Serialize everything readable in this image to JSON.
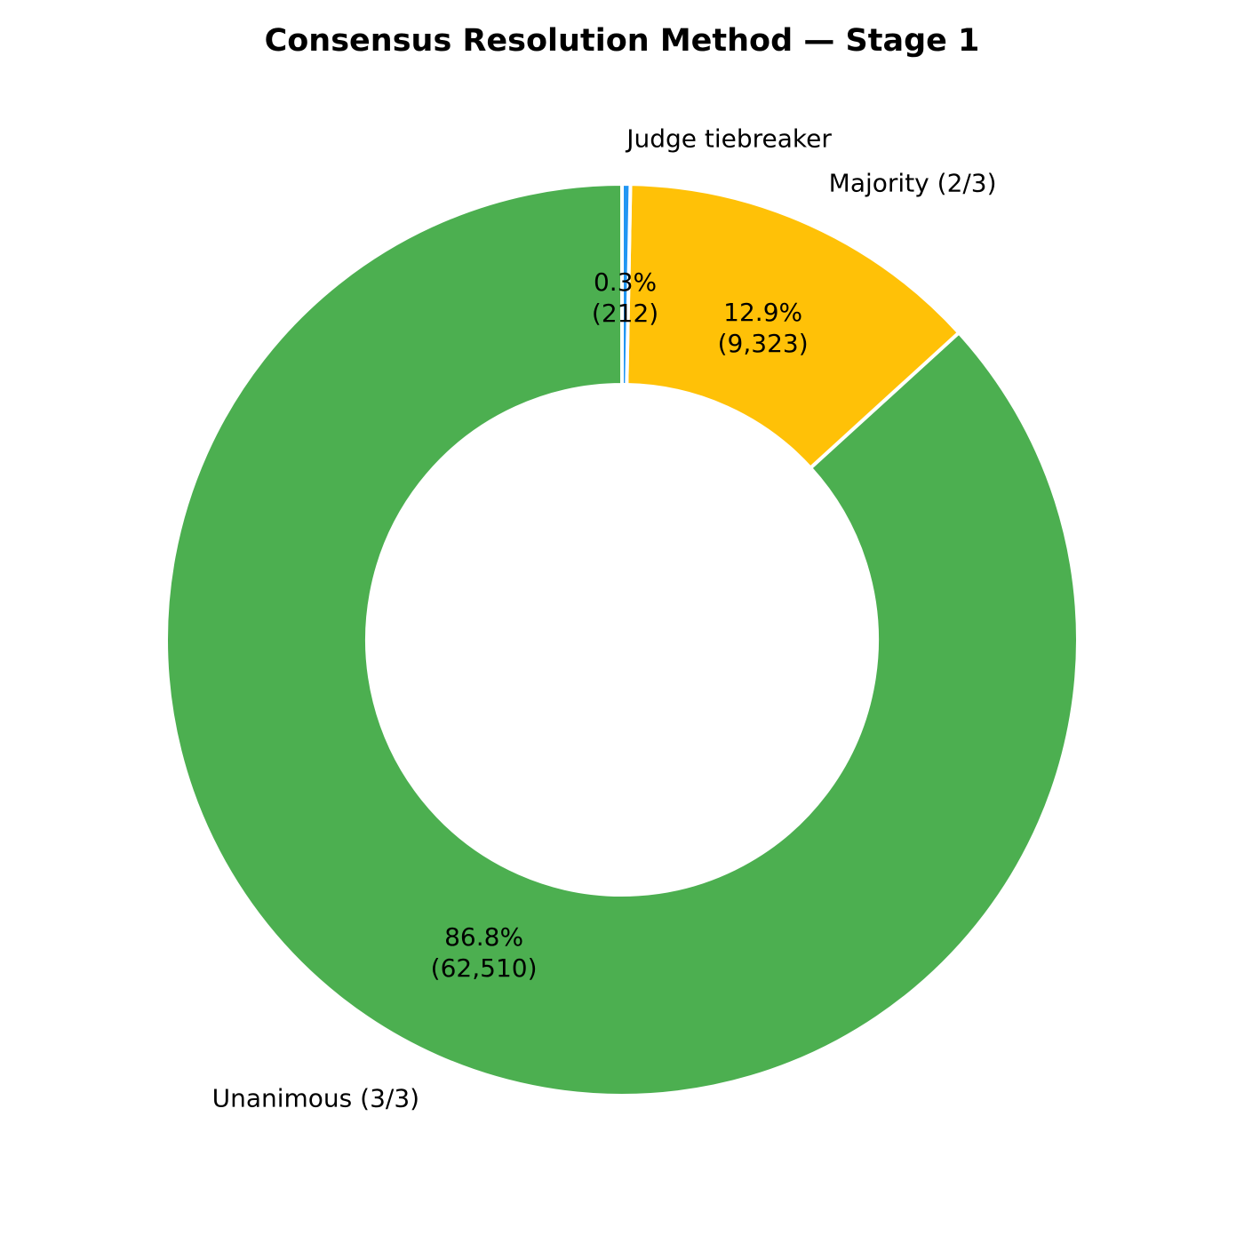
{
  "chart_data": {
    "type": "pie",
    "title": "Consensus Resolution Method — Stage 1",
    "donut": true,
    "start_angle_deg": 90,
    "counterclockwise": true,
    "label_distance": 1.1,
    "pct_distance": 0.75,
    "wedge_edge_color": "#ffffff",
    "slices": [
      {
        "id": "unanimous",
        "label": "Unanimous (3/3)",
        "value": 62510,
        "pct": "86.8%",
        "count_label": "(62,510)",
        "color": "#4caf50"
      },
      {
        "id": "majority",
        "label": "Majority (2/3)",
        "value": 9323,
        "pct": "12.9%",
        "count_label": "(9,323)",
        "color": "#ffc107"
      },
      {
        "id": "judge-tiebreaker",
        "label": "Judge tiebreaker",
        "value": 212,
        "pct": "0.3%",
        "count_label": "(212)",
        "color": "#2196f3"
      }
    ]
  }
}
